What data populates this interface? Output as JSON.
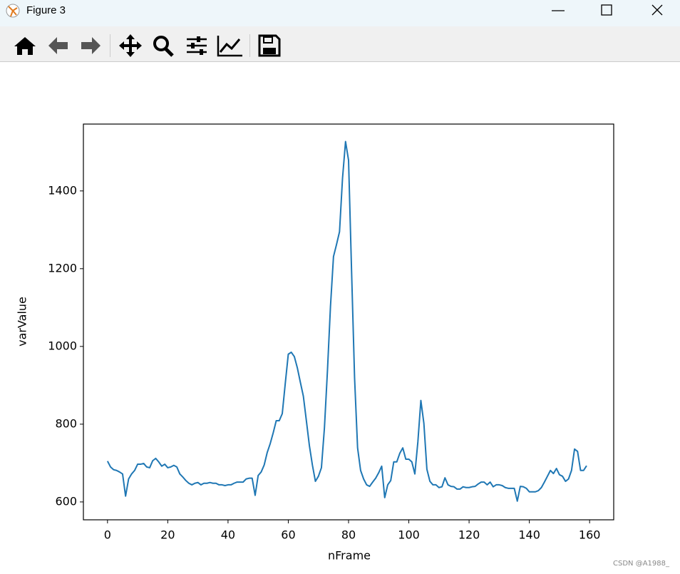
{
  "window": {
    "title": "Figure 3"
  },
  "chart_data": {
    "type": "line",
    "xlabel": "nFrame",
    "ylabel": "varValue",
    "x": [
      0,
      1,
      2,
      3,
      4,
      5,
      6,
      7,
      8,
      9,
      10,
      11,
      12,
      13,
      14,
      15,
      16,
      17,
      18,
      19,
      20,
      21,
      22,
      23,
      24,
      25,
      26,
      27,
      28,
      29,
      30,
      31,
      32,
      33,
      34,
      35,
      36,
      37,
      38,
      39,
      40,
      41,
      42,
      43,
      44,
      45,
      46,
      47,
      48,
      49,
      50,
      51,
      52,
      53,
      54,
      55,
      56,
      57,
      58,
      59,
      60,
      61,
      62,
      63,
      64,
      65,
      66,
      67,
      68,
      69,
      70,
      71,
      72,
      73,
      74,
      75,
      76,
      77,
      78,
      79,
      80,
      81,
      82,
      83,
      84,
      85,
      86,
      87,
      88,
      89,
      90,
      91,
      92,
      93,
      94,
      95,
      96,
      97,
      98,
      99,
      100,
      101,
      102,
      103,
      104,
      105,
      106,
      107,
      108,
      109,
      110,
      111,
      112,
      113,
      114,
      115,
      116,
      117,
      118,
      119,
      120,
      121,
      122,
      123,
      124,
      125,
      126,
      127,
      128,
      129,
      130,
      131,
      132,
      133,
      134,
      135,
      136,
      137,
      138,
      139,
      140,
      141,
      142,
      143,
      144,
      145,
      146,
      147,
      148,
      149,
      150,
      151,
      152,
      153,
      154,
      155,
      156,
      157,
      158,
      159
    ],
    "values": [
      705,
      690,
      683,
      681,
      677,
      672,
      615,
      659,
      672,
      681,
      697,
      697,
      699,
      690,
      688,
      706,
      712,
      703,
      692,
      697,
      688,
      690,
      694,
      690,
      672,
      664,
      655,
      648,
      644,
      648,
      650,
      644,
      648,
      648,
      650,
      648,
      648,
      644,
      644,
      642,
      644,
      644,
      648,
      651,
      651,
      651,
      659,
      661,
      661,
      617,
      668,
      677,
      695,
      727,
      750,
      778,
      809,
      809,
      827,
      905,
      980,
      985,
      974,
      945,
      908,
      872,
      809,
      745,
      695,
      653,
      666,
      688,
      791,
      938,
      1103,
      1231,
      1262,
      1295,
      1433,
      1527,
      1479,
      1194,
      919,
      739,
      681,
      659,
      644,
      640,
      651,
      661,
      675,
      692,
      611,
      644,
      655,
      703,
      703,
      725,
      739,
      710,
      710,
      703,
      672,
      754,
      861,
      802,
      684,
      653,
      644,
      644,
      637,
      639,
      662,
      644,
      640,
      639,
      633,
      633,
      639,
      637,
      637,
      639,
      640,
      646,
      651,
      651,
      644,
      651,
      639,
      644,
      644,
      642,
      637,
      635,
      635,
      635,
      602,
      640,
      639,
      635,
      626,
      626,
      626,
      629,
      637,
      651,
      666,
      681,
      673,
      686,
      670,
      666,
      653,
      659,
      681,
      736,
      730,
      681,
      681,
      693
    ],
    "color": "#1f77b4",
    "xlim": [
      -8,
      168
    ],
    "xticks": [
      0,
      20,
      40,
      60,
      80,
      100,
      120,
      140,
      160
    ],
    "ylim": [
      554,
      1572
    ],
    "yticks": [
      600,
      800,
      1000,
      1200,
      1400
    ],
    "grid": false
  },
  "watermark": "CSDN @A1988_"
}
